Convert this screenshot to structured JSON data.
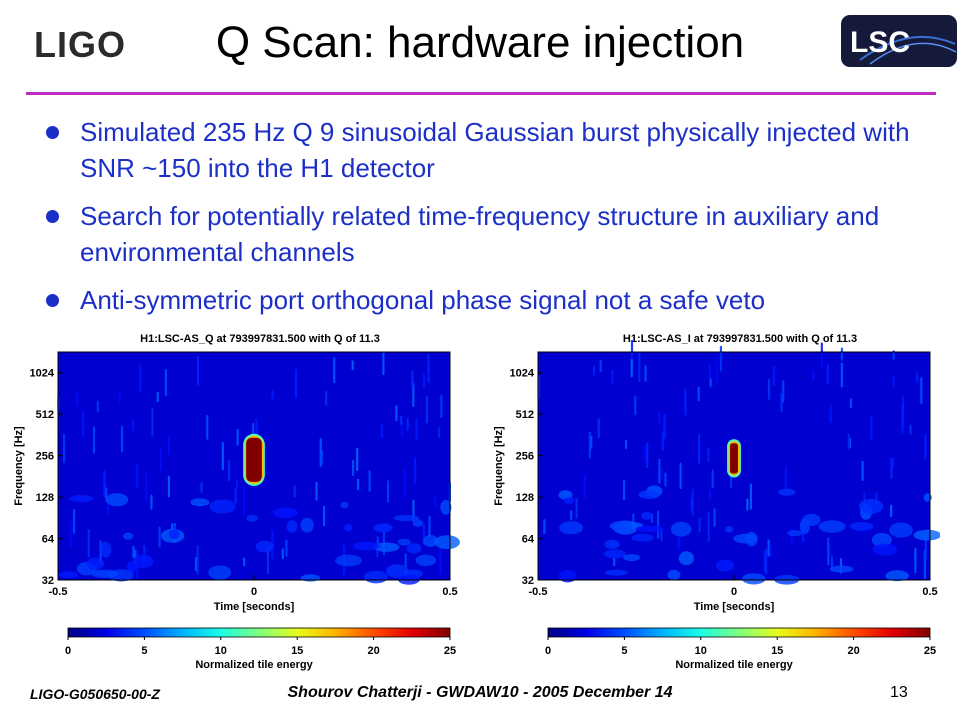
{
  "slide": {
    "logo_left": "LIGO",
    "logo_right": "LSC",
    "title": "Q Scan: hardware injection",
    "bullets": [
      "Simulated 235 Hz Q 9 sinusoidal Gaussian burst physically injected with SNR ~150 into the H1 detector",
      "Search for potentially related time-frequency structure in auxiliary and environmental channels",
      "Anti-symmetric port orthogonal phase signal not a safe veto"
    ],
    "footer_left": "LIGO-G050650-00-Z",
    "footer_center": "Shourov Chatterji - GWDAW10 - 2005 December 14",
    "page_number": "13",
    "accent_color": "#1c30c8",
    "rule_color": "#c02cc0"
  },
  "chart_data": [
    {
      "type": "heatmap",
      "title": "H1:LSC-AS_Q at 793997831.500 with Q of 11.3",
      "xlabel": "Time [seconds]",
      "ylabel": "Frequency [Hz]",
      "xlim": [
        -0.5,
        0.5
      ],
      "x_ticks": [
        -0.5,
        0,
        0.5
      ],
      "y_scale": "log2",
      "ylim": [
        32,
        1448
      ],
      "y_ticks": [
        32,
        64,
        128,
        256,
        512,
        1024
      ],
      "colorbar_label": "Normalized tile energy",
      "colorbar_ticks": [
        0,
        5,
        10,
        15,
        20,
        25
      ],
      "colorbar_range": [
        0,
        25
      ],
      "features": [
        {
          "label": "injection",
          "t_start": -0.02,
          "t_end": 0.02,
          "f_low": 165,
          "f_high": 345,
          "energy": 25
        }
      ]
    },
    {
      "type": "heatmap",
      "title": "H1:LSC-AS_I at 793997831.500 with Q of 11.3",
      "xlabel": "Time [seconds]",
      "ylabel": "Frequency [Hz]",
      "xlim": [
        -0.5,
        0.5
      ],
      "x_ticks": [
        -0.5,
        0,
        0.5
      ],
      "y_scale": "log2",
      "ylim": [
        32,
        1448
      ],
      "y_ticks": [
        32,
        64,
        128,
        256,
        512,
        1024
      ],
      "colorbar_label": "Normalized tile energy",
      "colorbar_ticks": [
        0,
        5,
        10,
        15,
        20,
        25
      ],
      "colorbar_range": [
        0,
        25
      ],
      "features": [
        {
          "label": "injection",
          "t_start": -0.01,
          "t_end": 0.01,
          "f_low": 190,
          "f_high": 315,
          "energy": 25
        }
      ]
    }
  ]
}
